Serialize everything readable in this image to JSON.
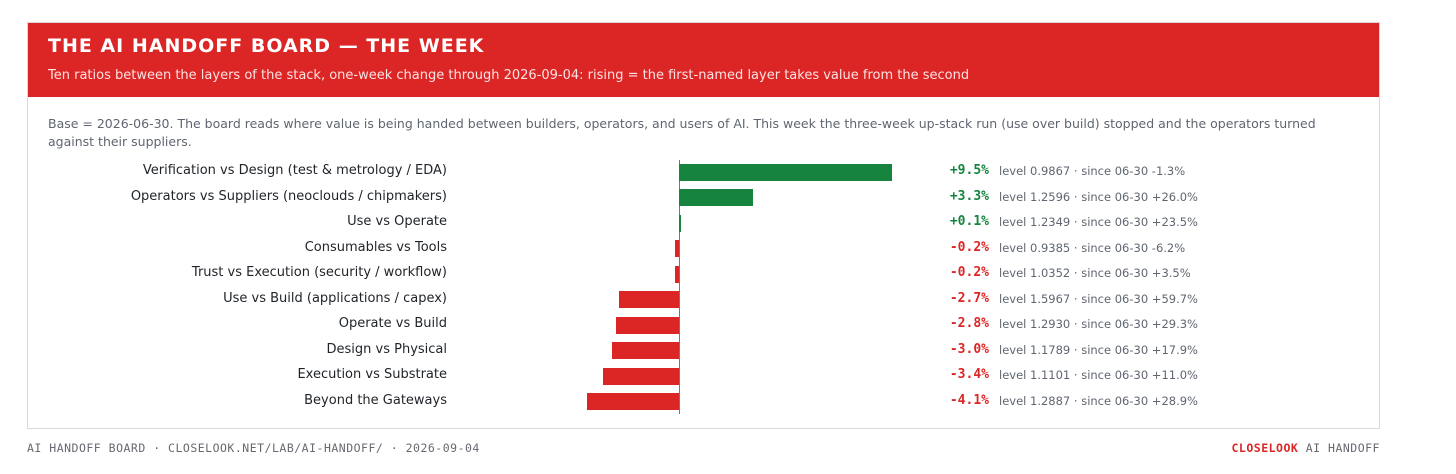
{
  "header": {
    "title": "THE AI HANDOFF BOARD — THE WEEK",
    "subtitle": "Ten ratios between the layers of the stack, one-week change through 2026-09-04: rising = the first-named layer takes value from the second"
  },
  "description": "Base = 2026-06-30. The board reads where value is being handed between builders, operators, and users of AI. This week the three-week up-stack run (use over build) stopped and the operators turned against their suppliers.",
  "colors": {
    "header_bg": "#dc2626",
    "positive": "#16843f",
    "negative": "#dc2626"
  },
  "chart_data": {
    "type": "bar",
    "orientation": "horizontal",
    "unit": "%",
    "categories": [
      "Verification vs Design (test & metrology / EDA)",
      "Operators vs Suppliers (neoclouds / chipmakers)",
      "Use vs Operate",
      "Consumables vs Tools",
      "Trust vs Execution (security / workflow)",
      "Use vs Build (applications / capex)",
      "Operate vs Build",
      "Design vs Physical",
      "Execution vs Substrate",
      "Beyond the Gateways"
    ],
    "values": [
      9.5,
      3.3,
      0.1,
      -0.2,
      -0.2,
      -2.7,
      -2.8,
      -3.0,
      -3.4,
      -4.1
    ],
    "value_labels": [
      "+9.5%",
      "+3.3%",
      "+0.1%",
      "-0.2%",
      "-0.2%",
      "-2.7%",
      "-2.8%",
      "-3.0%",
      "-3.4%",
      "-4.1%"
    ],
    "details": [
      "level 0.9867 · since 06-30 -1.3%",
      "level 1.2596 · since 06-30 +26.0%",
      "level 1.2349 · since 06-30 +23.5%",
      "level 0.9385 · since 06-30 -6.2%",
      "level 1.0352 · since 06-30 +3.5%",
      "level 1.5967 · since 06-30 +59.7%",
      "level 1.2930 · since 06-30 +29.3%",
      "level 1.1789 · since 06-30 +17.9%",
      "level 1.1101 · since 06-30 +11.0%",
      "level 1.2887 · since 06-30 +28.9%"
    ],
    "xlim": [
      -4.1,
      9.5
    ],
    "grid": false,
    "legend": "none"
  },
  "footer": {
    "left": "AI HANDOFF BOARD · CLOSELOOK.NET/LAB/AI-HANDOFF/ · 2026-09-04",
    "brand": "CLOSELOOK",
    "right": "AI HANDOFF"
  }
}
